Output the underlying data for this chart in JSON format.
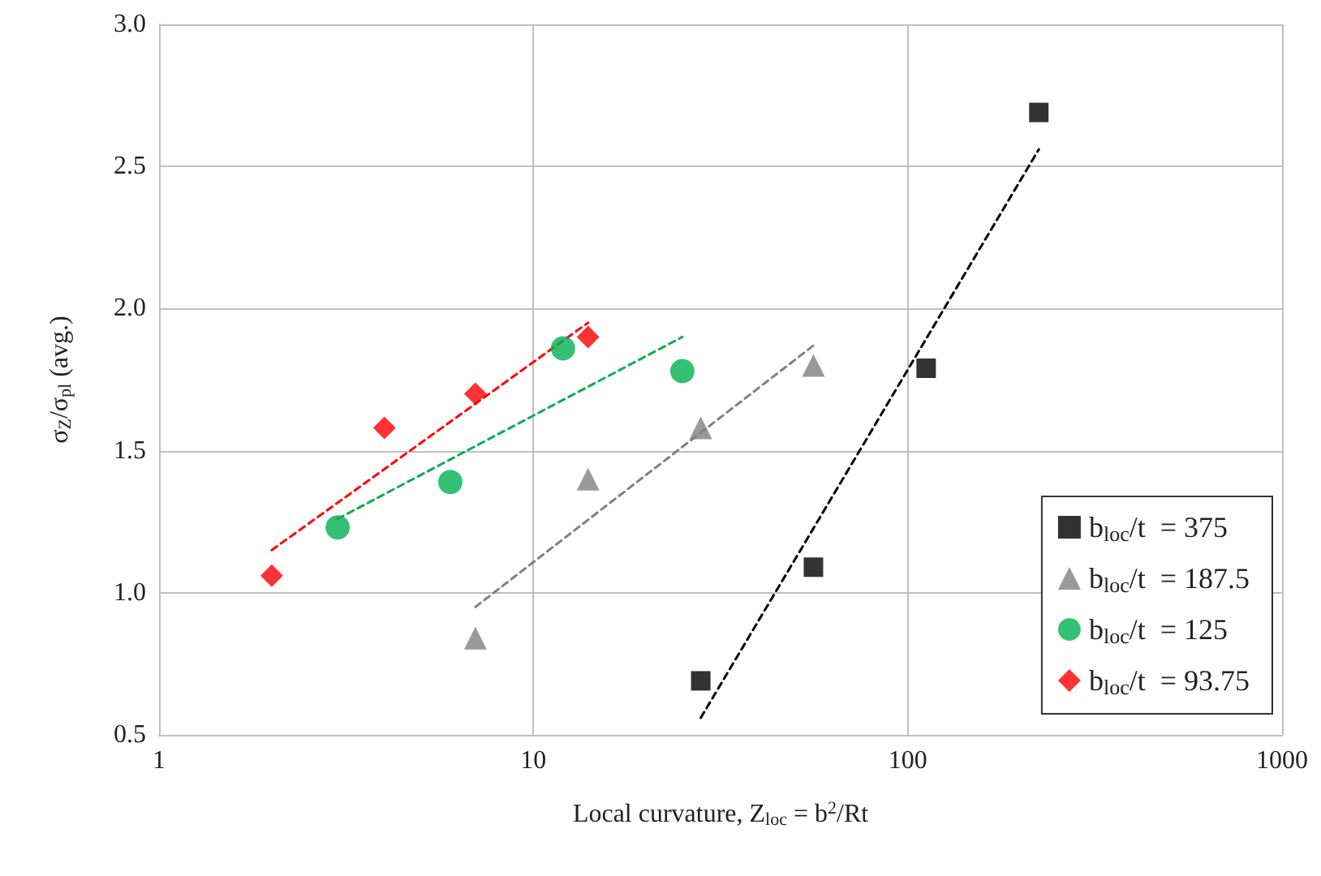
{
  "chart_data": {
    "type": "scatter",
    "xlabel": "Local curvature, Z$_{loc}$ = b$^{2}$/Rt",
    "ylabel": "σ$_{Z}$/σ$_{pl}$ (avg.)",
    "log": "x",
    "grid": true,
    "legend": "bottom right",
    "xlim": [
      1,
      1000
    ],
    "xticks": [
      1,
      10,
      100,
      1000
    ],
    "ylim": [
      0.5,
      3.0
    ],
    "yticks": [
      {
        "value": 0.5,
        "label": "0.5"
      },
      {
        "value": 1.0,
        "label": "1.0"
      },
      {
        "value": 1.5,
        "label": "1.5"
      },
      {
        "value": 2.0,
        "label": "2.0"
      },
      {
        "value": 2.5,
        "label": "2.5"
      },
      {
        "value": 3.0,
        "label": "3.0"
      }
    ],
    "series": [
      {
        "name": "b$_{loc}$/t  = 375",
        "color": "#000000",
        "marker": "square",
        "x": [
          28,
          56,
          112,
          224
        ],
        "values": [
          0.69,
          1.09,
          1.79,
          2.69
        ]
      },
      {
        "name": "b$_{loc}$/t  = 187.5",
        "color": "#808080",
        "marker": "triangle",
        "x": [
          7,
          14,
          28,
          56
        ],
        "values": [
          0.84,
          1.4,
          1.58,
          1.8
        ]
      },
      {
        "name": "b$_{loc}$/t  = 125",
        "color": "#00b050",
        "marker": "circle",
        "x": [
          3,
          6,
          12,
          25
        ],
        "values": [
          1.23,
          1.39,
          1.86,
          1.78
        ]
      },
      {
        "name": "b$_{loc}$/t  = 93.75",
        "color": "#ff0000",
        "marker": "diamond",
        "x": [
          2,
          4,
          7,
          14
        ],
        "values": [
          1.06,
          1.58,
          1.7,
          1.9
        ]
      },
      {
        "type": "line",
        "color": "#000000",
        "marker": "none",
        "line_style": "dashed",
        "x": [
          28,
          224
        ],
        "values": [
          0.56,
          2.56
        ]
      },
      {
        "type": "line",
        "color": "#808080",
        "marker": "none",
        "line_style": "dashed",
        "x": [
          7,
          56
        ],
        "values": [
          0.95,
          1.87
        ]
      },
      {
        "type": "line",
        "color": "#00b050",
        "marker": "none",
        "line_style": "dashed",
        "x": [
          3,
          25
        ],
        "values": [
          1.26,
          1.9
        ]
      },
      {
        "type": "line",
        "color": "#ff0000",
        "marker": "none",
        "line_style": "dashed",
        "x": [
          2,
          14
        ],
        "values": [
          1.15,
          1.95
        ]
      }
    ]
  }
}
